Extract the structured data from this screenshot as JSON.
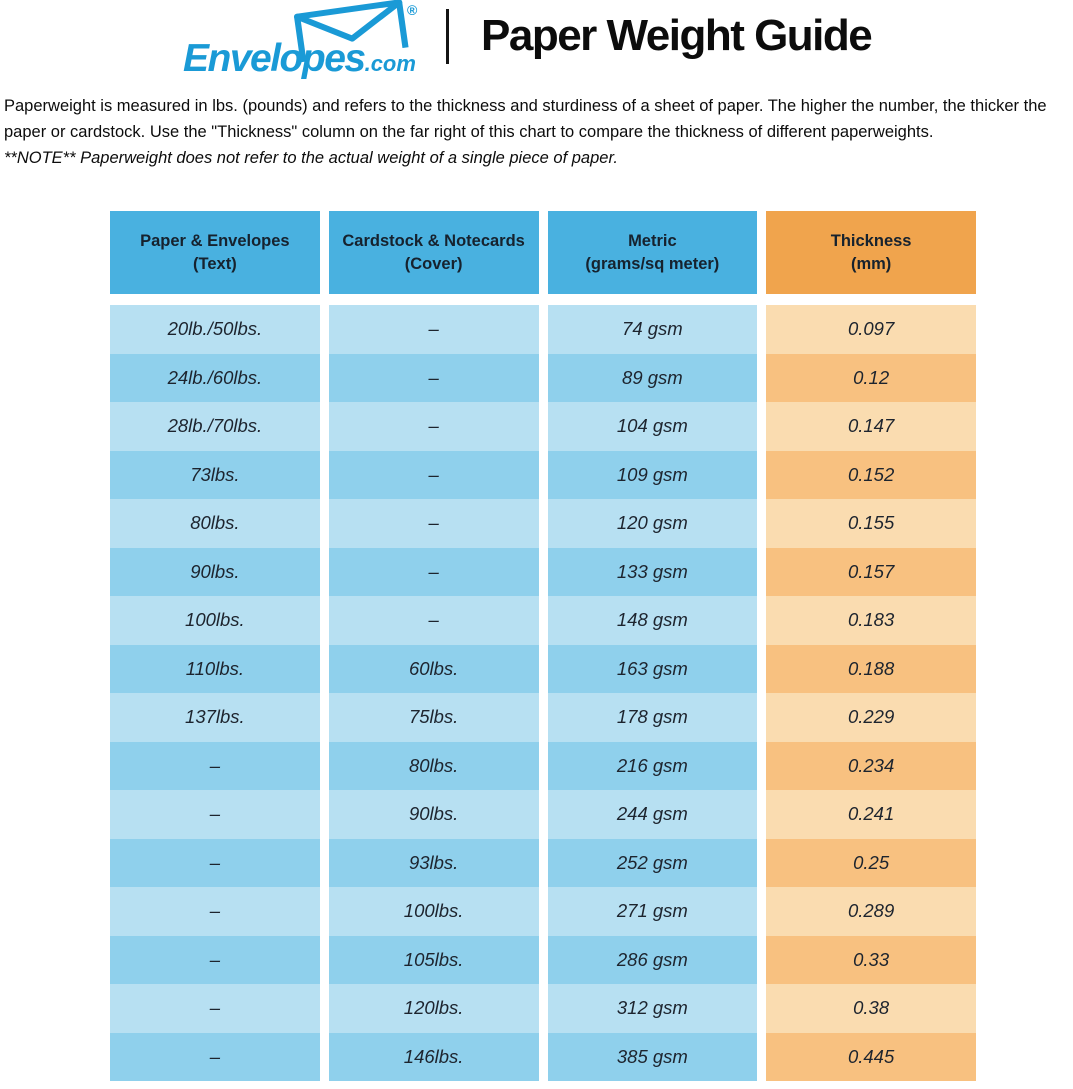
{
  "header": {
    "brand": "Envelopes",
    "brand_tld": ".com",
    "registered_mark": "®",
    "title": "Paper Weight Guide"
  },
  "intro": "Paperweight is measured in lbs. (pounds) and refers to the thickness and sturdiness of a sheet of paper. The higher the number, the thicker the paper or cardstock. Use the \"Thickness\" column on the far right of this chart to compare the thickness of different paperweights.",
  "note": "**NOTE** Paperweight does not refer to the actual weight of a single piece of paper.",
  "chart_data": {
    "type": "table",
    "title": "Paper Weight Guide",
    "columns": [
      "Paper & Envelopes\n(Text)",
      "Cardstock & Notecards\n(Cover)",
      "Metric\n(grams/sq meter)",
      "Thickness\n(mm)"
    ],
    "rows": [
      [
        "20lb./50lbs.",
        "–",
        "74 gsm",
        "0.097"
      ],
      [
        "24lb./60lbs.",
        "–",
        "89 gsm",
        "0.12"
      ],
      [
        "28lb./70lbs.",
        "–",
        "104 gsm",
        "0.147"
      ],
      [
        "73lbs.",
        "–",
        "109 gsm",
        "0.152"
      ],
      [
        "80lbs.",
        "–",
        "120 gsm",
        "0.155"
      ],
      [
        "90lbs.",
        "–",
        "133 gsm",
        "0.157"
      ],
      [
        "100lbs.",
        "–",
        "148 gsm",
        "0.183"
      ],
      [
        "110lbs.",
        "60lbs.",
        "163 gsm",
        "0.188"
      ],
      [
        "137lbs.",
        "75lbs.",
        "178 gsm",
        "0.229"
      ],
      [
        "–",
        "80lbs.",
        "216 gsm",
        "0.234"
      ],
      [
        "–",
        "90lbs.",
        "244 gsm",
        "0.241"
      ],
      [
        "–",
        "93lbs.",
        "252 gsm",
        "0.25"
      ],
      [
        "–",
        "100lbs.",
        "271 gsm",
        "0.289"
      ],
      [
        "–",
        "105lbs.",
        "286 gsm",
        "0.33"
      ],
      [
        "–",
        "120lbs.",
        "312 gsm",
        "0.38"
      ],
      [
        "–",
        "146lbs.",
        "385 gsm",
        "0.445"
      ]
    ],
    "layout": {
      "column_types": [
        "blue",
        "blue",
        "blue",
        "orange"
      ],
      "row_shading": "alternating, first row light"
    },
    "colors": {
      "logo_blue": "#1a9ad6",
      "header_blue": "#49b1e0",
      "header_orange": "#f0a44d",
      "row_blue_light": "#b7e0f2",
      "row_blue_dark": "#8fd0ec",
      "row_orange_light": "#fadcb0",
      "row_orange_dark": "#f8c180",
      "cell_text": "#1d242e"
    }
  }
}
